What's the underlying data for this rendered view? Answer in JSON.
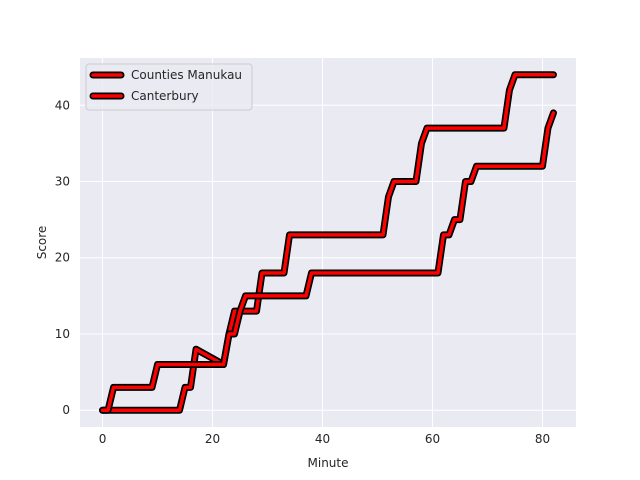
{
  "chart_data": {
    "type": "line",
    "title": "",
    "xlabel": "Minute",
    "ylabel": "Score",
    "xlim": [
      -4.1,
      86.1
    ],
    "ylim": [
      -2.2,
      46.2
    ],
    "xticks": [
      0,
      20,
      40,
      60,
      80
    ],
    "yticks": [
      0,
      10,
      20,
      30,
      40
    ],
    "grid": true,
    "legend_position": "top-left",
    "background_color": "#eaeaf2",
    "line_color": "#ff0000",
    "outline_color": "#000000",
    "series": [
      {
        "name": "Counties Manukau",
        "x": [
          0,
          14,
          15,
          16,
          17,
          22,
          23,
          24,
          25,
          28,
          29,
          33,
          34,
          51,
          52,
          53,
          57,
          58,
          59,
          73,
          74,
          75,
          82
        ],
        "y": [
          0,
          0,
          3,
          3,
          8,
          6,
          10,
          13,
          13,
          13,
          18,
          18,
          23,
          23,
          28,
          30,
          30,
          35,
          37,
          37,
          42,
          44,
          44
        ]
      },
      {
        "name": "Canterbury",
        "x": [
          0,
          1,
          2,
          9,
          10,
          22,
          23,
          24,
          25,
          26,
          37,
          38,
          61,
          62,
          63,
          64,
          65,
          66,
          67,
          68,
          80,
          81,
          82
        ],
        "y": [
          0,
          0,
          3,
          3,
          6,
          6,
          10,
          10,
          13,
          15,
          15,
          18,
          18,
          23,
          23,
          25,
          25,
          30,
          30,
          32,
          32,
          37,
          39
        ]
      }
    ]
  }
}
